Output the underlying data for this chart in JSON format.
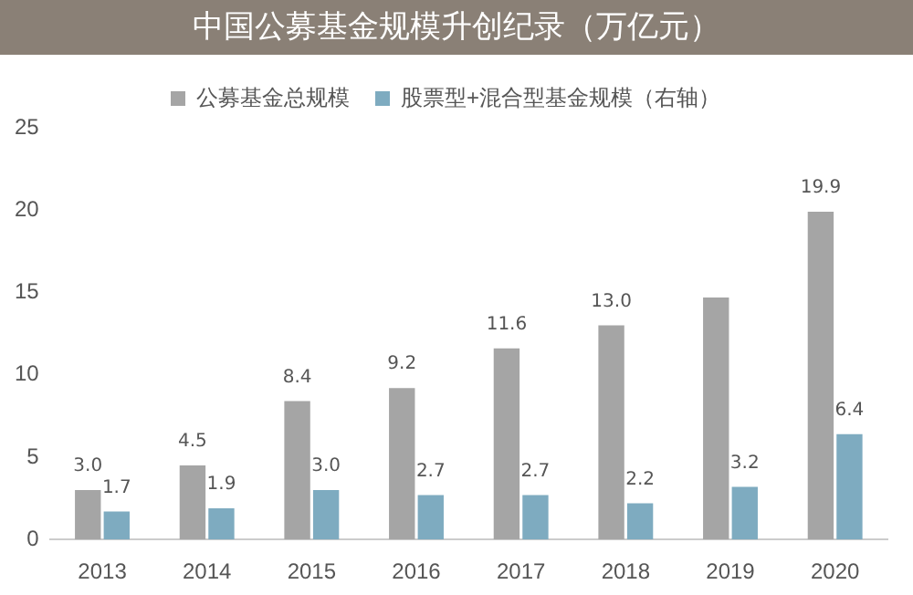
{
  "chart_data": {
    "type": "bar",
    "title": "中国公募基金规模升创纪录（万亿元）",
    "categories": [
      "2013",
      "2014",
      "2015",
      "2016",
      "2017",
      "2018",
      "2019",
      "2020"
    ],
    "series": [
      {
        "name": "公募基金总规模",
        "color": "#a5a5a5",
        "values": [
          3.0,
          4.5,
          8.4,
          9.2,
          11.6,
          13.0,
          14.7,
          19.9
        ],
        "value_labels": [
          "3.0",
          "4.5",
          "8.4",
          "9.2",
          "11.6",
          "13.0",
          null,
          "19.9"
        ]
      },
      {
        "name": "股票型+混合型基金规模（右轴）",
        "color": "#7eabc0",
        "values": [
          1.7,
          1.9,
          3.0,
          2.7,
          2.7,
          2.2,
          3.2,
          6.4
        ],
        "value_labels": [
          "1.7",
          "1.9",
          "3.0",
          "2.7",
          "2.7",
          "2.2",
          "3.2",
          "6.4"
        ]
      }
    ],
    "ylim": [
      0,
      25
    ],
    "yticks": [
      0,
      5,
      10,
      15,
      20,
      25
    ],
    "grid": false,
    "legend": "top"
  }
}
